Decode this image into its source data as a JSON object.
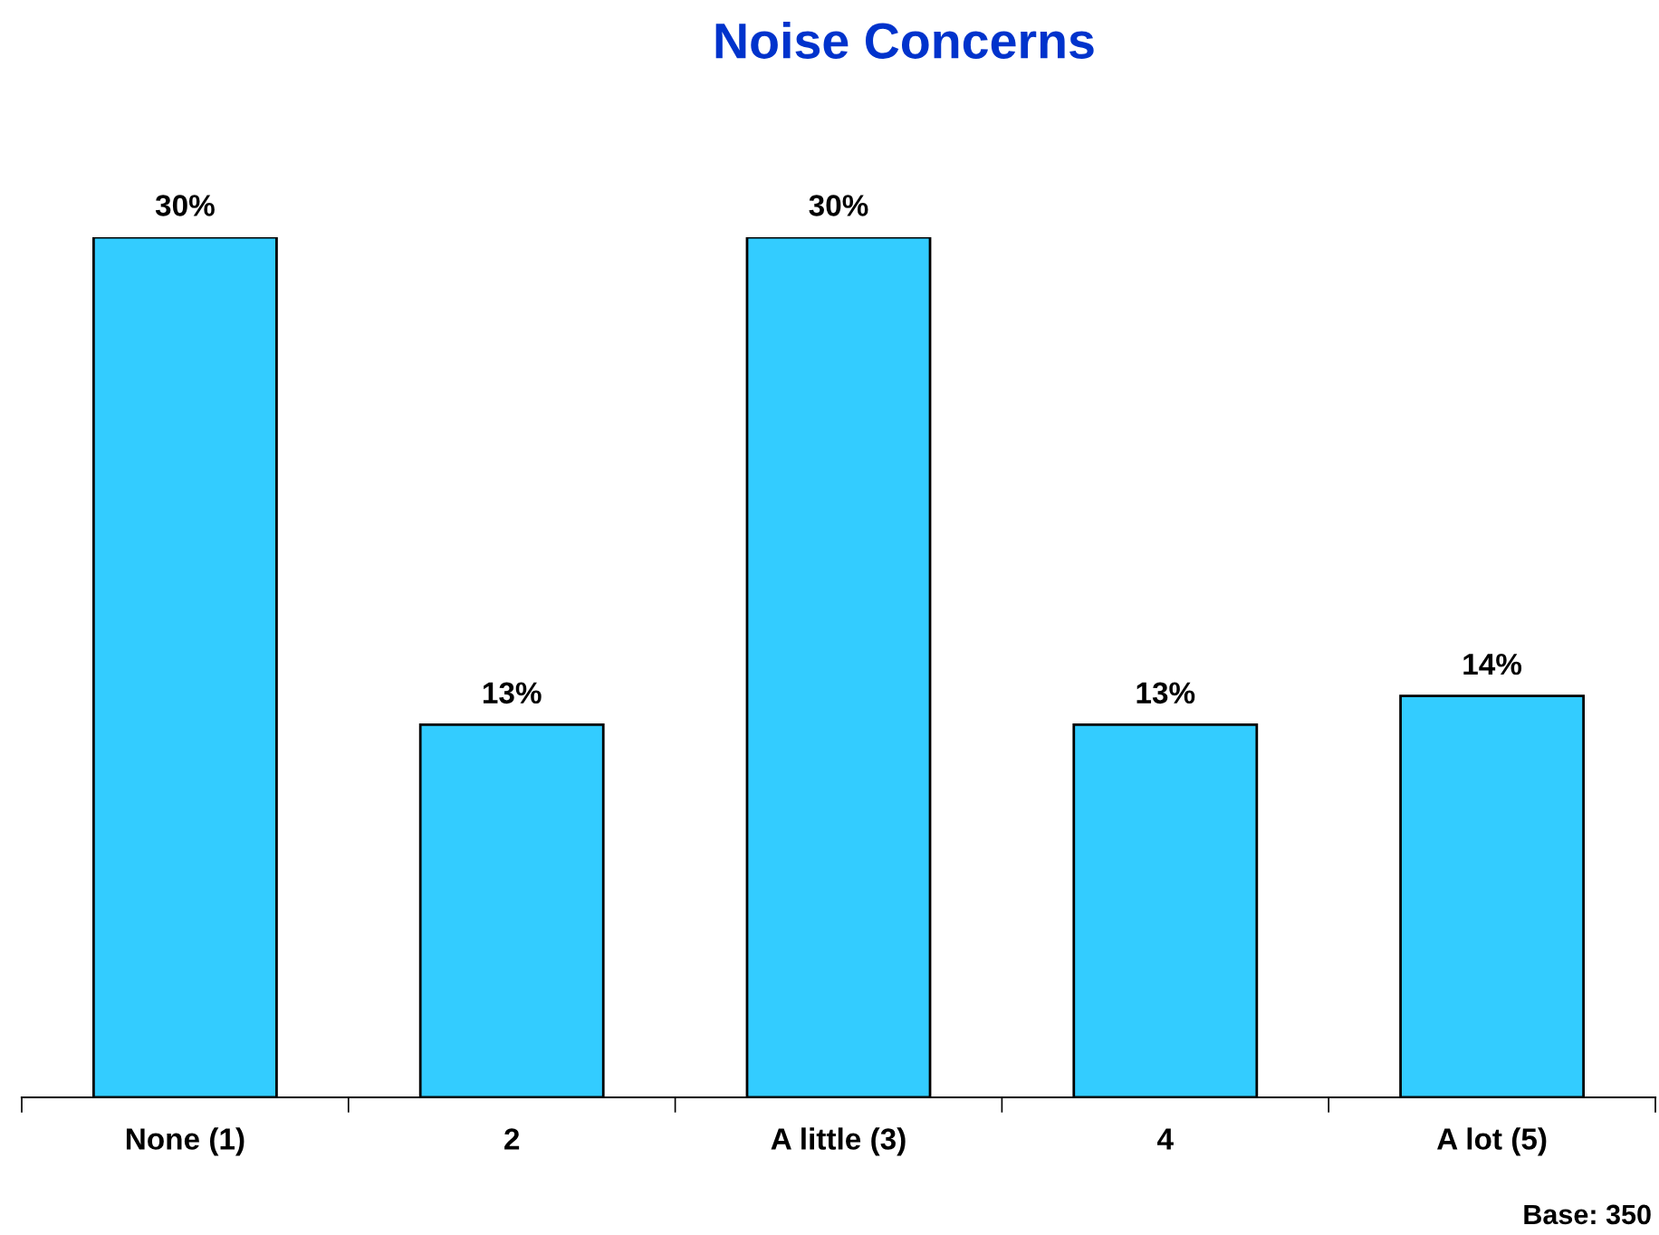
{
  "chart_data": {
    "type": "bar",
    "title": "Noise Concerns",
    "categories": [
      "None (1)",
      "2",
      "A little (3)",
      "4",
      "A lot (5)"
    ],
    "values": [
      30,
      13,
      30,
      13,
      14
    ],
    "value_labels": [
      "30%",
      "13%",
      "30%",
      "13%",
      "14%"
    ],
    "color": "#33ccff",
    "annotations": [
      "Base: 350"
    ],
    "grid": false,
    "legend": false
  }
}
